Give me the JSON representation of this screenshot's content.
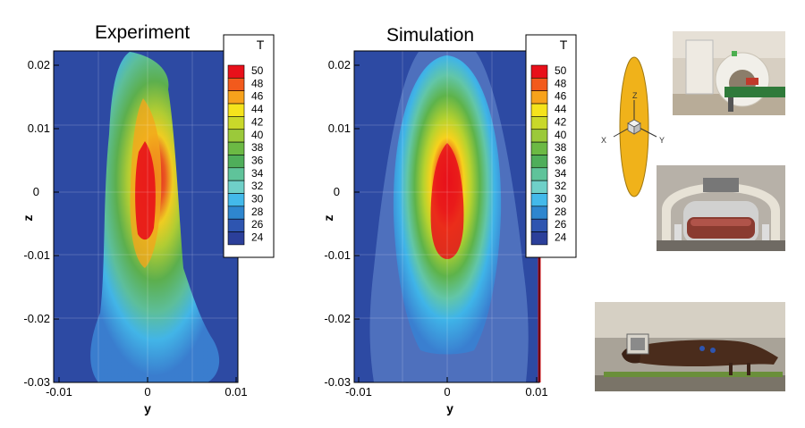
{
  "titles": {
    "experiment": "Experiment",
    "simulation": "Simulation"
  },
  "axes": {
    "xlabel": "y",
    "ylabel": "z",
    "x_ticks": [
      "-0.01",
      "0",
      "0.01"
    ],
    "y_ticks": [
      "0.02",
      "0.01",
      "0",
      "-0.01",
      "-0.02",
      "-0.03"
    ],
    "xlim": [
      -0.01,
      0.01
    ],
    "ylim": [
      -0.03,
      0.022
    ]
  },
  "legend": {
    "title": "T",
    "levels": [
      "50",
      "48",
      "46",
      "44",
      "42",
      "40",
      "38",
      "36",
      "34",
      "32",
      "30",
      "28",
      "26",
      "24"
    ],
    "colors": [
      "#e8101a",
      "#f25a1c",
      "#f7a21c",
      "#f5e31c",
      "#c9d82a",
      "#9bc93a",
      "#6cb944",
      "#4fae5a",
      "#5fc39a",
      "#6fd0c8",
      "#43b9ea",
      "#2e86cf",
      "#2e55b0",
      "#2b3f9a"
    ]
  },
  "background_color": "#2d4aa3",
  "coordinate_icon": {
    "axis_z": "Z",
    "axis_x": "X",
    "axis_y": "Y",
    "body_color": "#f0b21a"
  },
  "photos": [
    {
      "name": "mri-scanner-photo",
      "icon": "mri-scanner"
    },
    {
      "name": "phantom-in-coil-photo",
      "icon": "tissue-phantom"
    },
    {
      "name": "animal-on-table-photo",
      "icon": "animal-subject"
    }
  ]
}
